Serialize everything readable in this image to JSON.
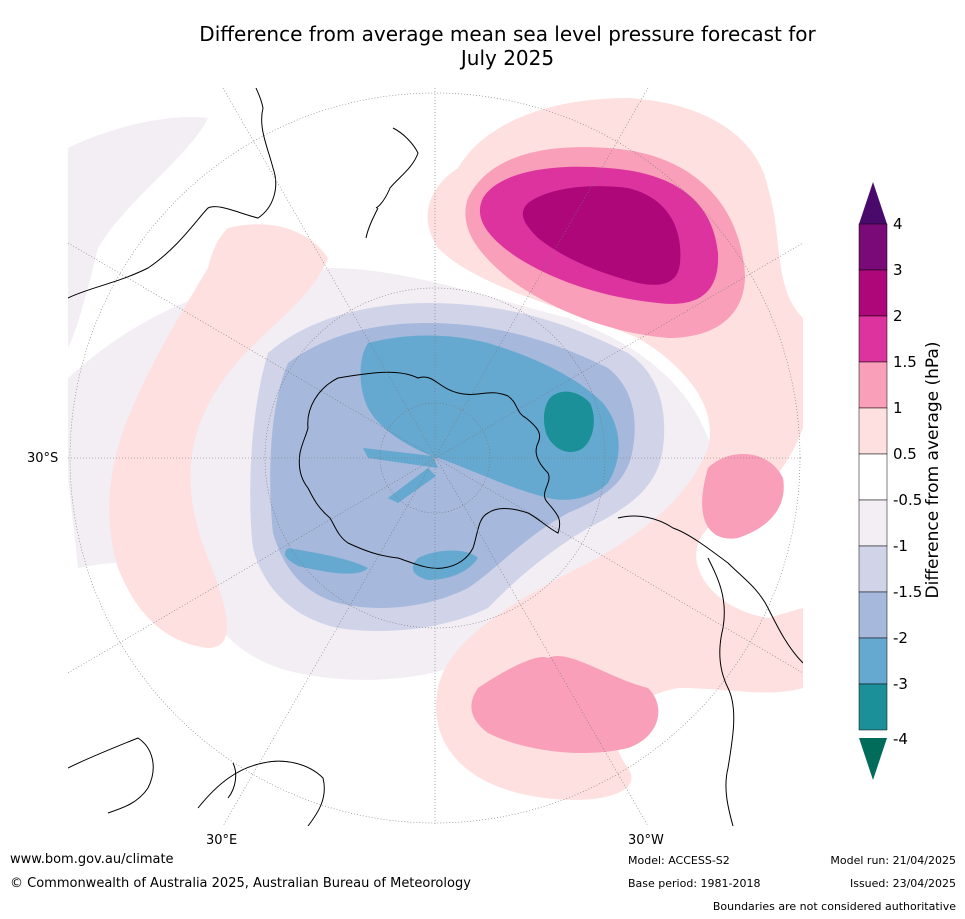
{
  "title_line1": "Difference from average mean sea level pressure forecast for",
  "title_line2": "July 2025",
  "map": {
    "label_lat": "30°S",
    "label_lon_left": "30°E",
    "label_lon_right": "30°W"
  },
  "colorbar": {
    "label": "Difference from average (hPa)",
    "ticks": [
      "4",
      "3",
      "2",
      "1.5",
      "1",
      "0.5",
      "-0.5",
      "-1",
      "-1.5",
      "-2",
      "-3",
      "-4"
    ],
    "colors": {
      "gt4": "#4a0a6b",
      "3_4": "#7a0a78",
      "2_3": "#ad077a",
      "1.5_2": "#dd339e",
      "1_1.5": "#f99fb9",
      "0.5_1": "#fde0df",
      "neutral": "#ffffff",
      "m1_m0.5": "#f2eef4",
      "m1.5_m1": "#d1d4e8",
      "m2_m1.5": "#a6b8dc",
      "m3_m2": "#66a9d0",
      "m4_m3": "#1c9099",
      "lt_m4": "#016c59"
    }
  },
  "footer": {
    "website": "www.bom.gov.au/climate",
    "copyright": "© Commonwealth of Australia 2025, Australian Bureau of Meteorology",
    "model": "Model: ACCESS-S2",
    "base_period": "Base period: 1981-2018",
    "model_run": "Model run: 21/04/2025",
    "issued": "Issued: 23/04/2025",
    "disclaimer": "Boundaries are not considered authoritative"
  }
}
